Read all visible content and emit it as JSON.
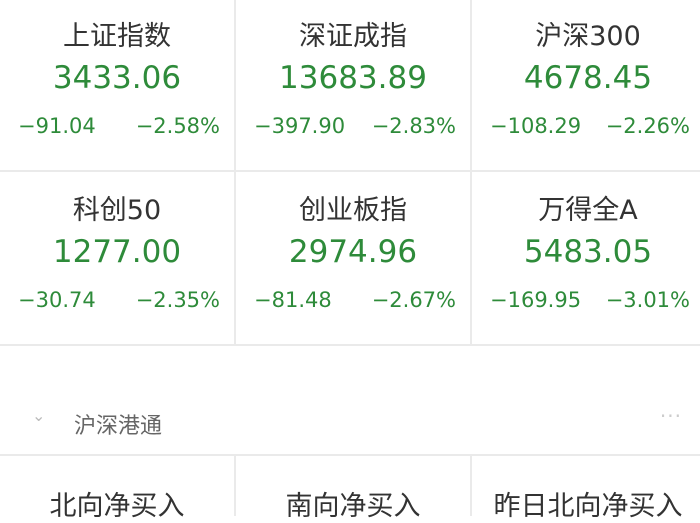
{
  "indices": [
    {
      "name": "上证指数",
      "price": "3433.06",
      "change": "−91.04",
      "pct": "−2.58%"
    },
    {
      "name": "深证成指",
      "price": "13683.89",
      "change": "−397.90",
      "pct": "−2.83%"
    },
    {
      "name": "沪深300",
      "price": "4678.45",
      "change": "−108.29",
      "pct": "−2.26%"
    },
    {
      "name": "科创50",
      "price": "1277.00",
      "change": "−30.74",
      "pct": "−2.35%"
    },
    {
      "name": "创业板指",
      "price": "2974.96",
      "change": "−81.48",
      "pct": "−2.67%"
    },
    {
      "name": "万得全A",
      "price": "5483.05",
      "change": "−169.95",
      "pct": "−3.01%"
    }
  ],
  "section": {
    "title": "沪深港通",
    "chevron": "⌄",
    "more": "···"
  },
  "flows": [
    {
      "name": "北向净买入"
    },
    {
      "name": "南向净买入"
    },
    {
      "name": "昨日北向净买入"
    }
  ],
  "colors": {
    "down": "#2e8b3a",
    "text": "#333333"
  }
}
